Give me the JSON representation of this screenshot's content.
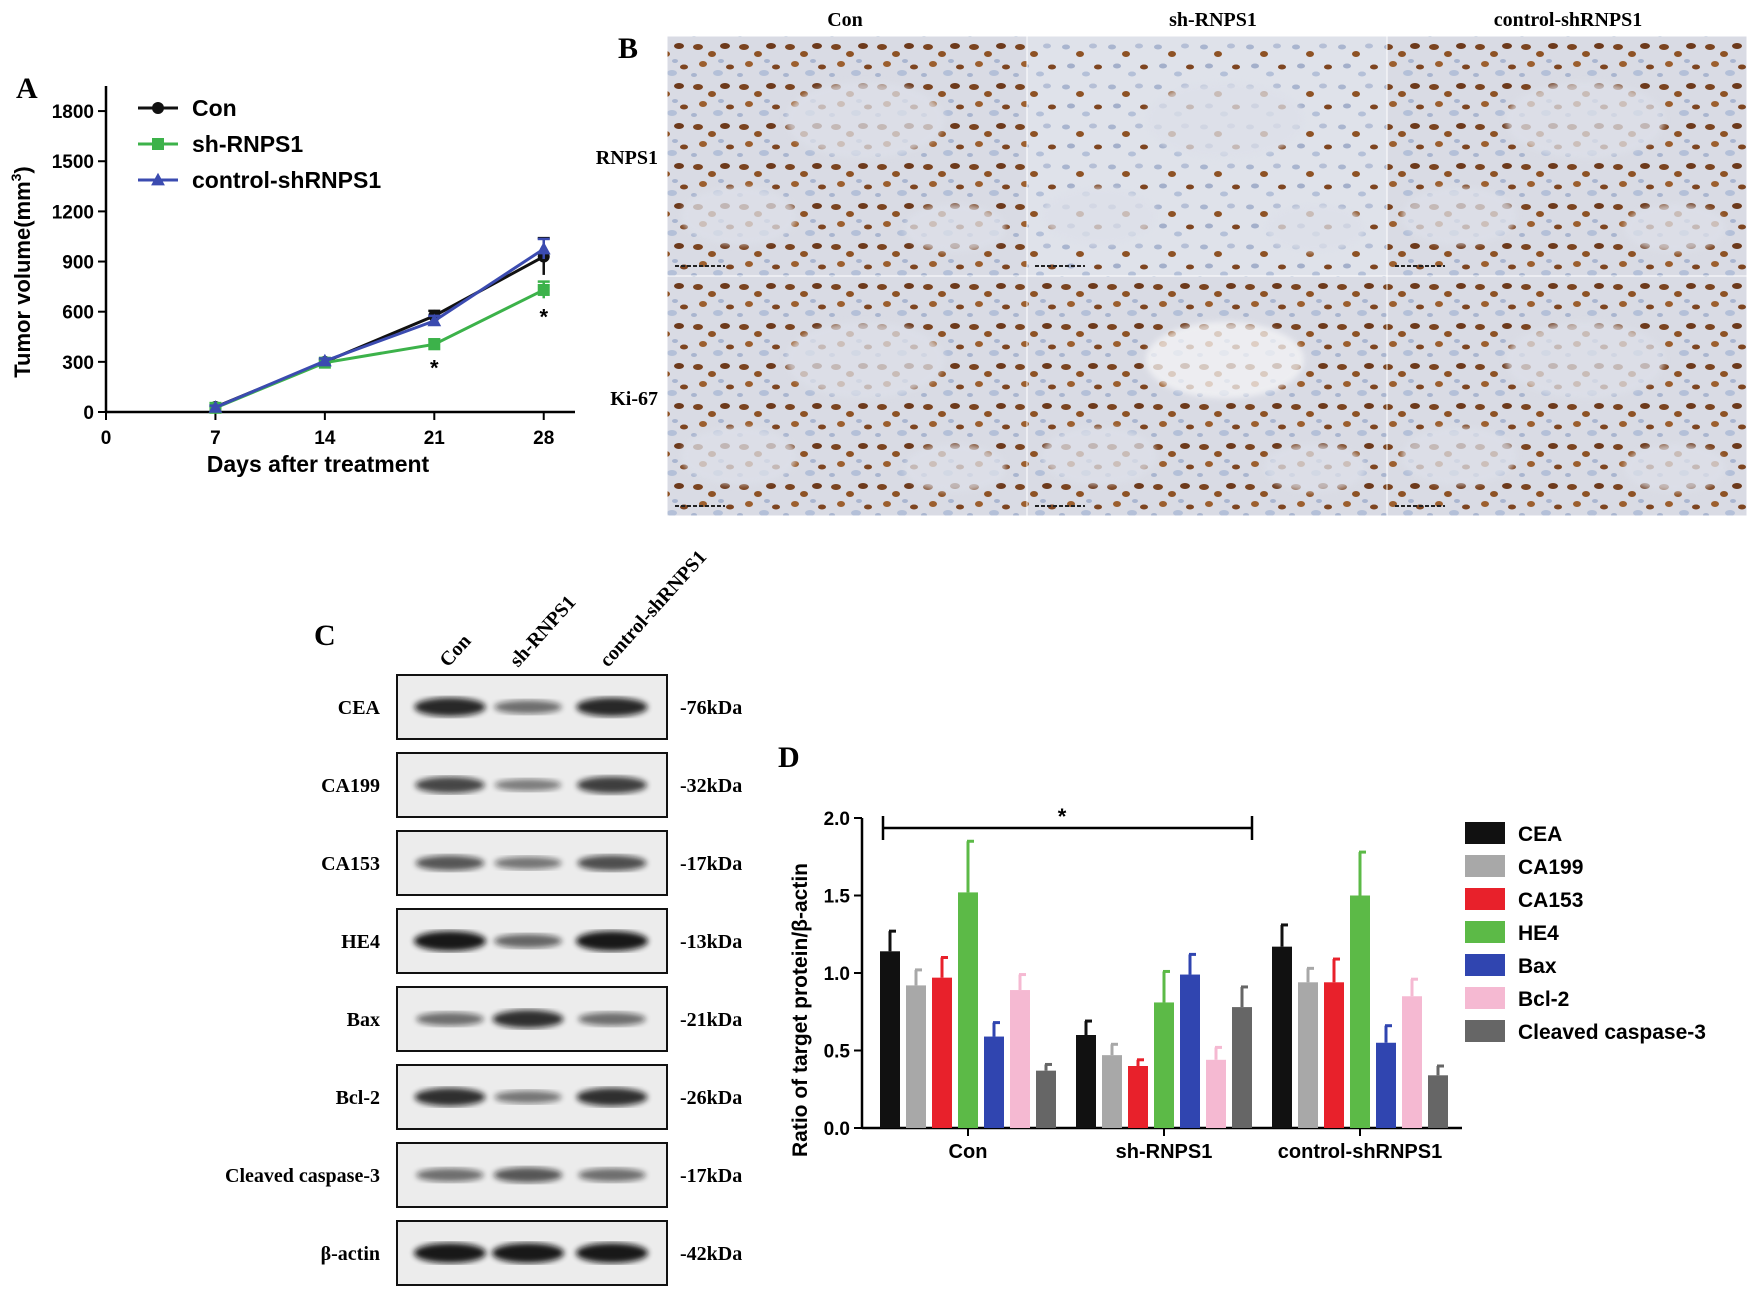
{
  "panels": {
    "A": {
      "letter": "A",
      "chart_data": {
        "type": "line",
        "xlabel": "Days after treatment",
        "ylabel": "Tumor volume(mm",
        "ylabel_sup": "3",
        "ylabel_close": ")",
        "xlim": [
          0,
          30
        ],
        "ylim": [
          0,
          1950
        ],
        "xticks": [
          0,
          7,
          14,
          21,
          28
        ],
        "yticks": [
          0,
          300,
          600,
          900,
          1200,
          1500,
          1800
        ],
        "x": [
          7,
          14,
          21,
          28
        ],
        "series": [
          {
            "name": "Con",
            "color": "#111111",
            "marker": "circle",
            "values": [
              30,
              300,
              575,
              930
            ],
            "err": [
              10,
              15,
              30,
              110
            ]
          },
          {
            "name": "sh-RNPS1",
            "color": "#3cb24a",
            "marker": "square",
            "values": [
              25,
              295,
              405,
              730
            ],
            "err": [
              8,
              15,
              30,
              50
            ]
          },
          {
            "name": "control-shRNPS1",
            "color": "#3b4bb0",
            "marker": "triangle",
            "values": [
              28,
              305,
              545,
              975
            ],
            "err": [
              10,
              15,
              30,
              60
            ]
          }
        ],
        "annotations": [
          {
            "text": "*",
            "x": 21
          },
          {
            "text": "*",
            "x": 28
          }
        ],
        "legend": "top-left"
      }
    },
    "B": {
      "letter": "B",
      "columns": [
        "Con",
        "sh-RNPS1",
        "control-shRNPS1"
      ],
      "rows": [
        "RNPS1",
        "Ki-67"
      ]
    },
    "C": {
      "letter": "C",
      "lanes": [
        "Con",
        "sh-RNPS1",
        "control-shRNPS1"
      ],
      "blots": [
        {
          "label": "CEA",
          "size": "-76kDa",
          "intensity": [
            0.9,
            0.45,
            0.9
          ]
        },
        {
          "label": "CA199",
          "size": "-32kDa",
          "intensity": [
            0.7,
            0.35,
            0.75
          ]
        },
        {
          "label": "CA153",
          "size": "-17kDa",
          "intensity": [
            0.6,
            0.4,
            0.65
          ]
        },
        {
          "label": "HE4",
          "size": "-13kDa",
          "intensity": [
            1.0,
            0.5,
            1.0
          ]
        },
        {
          "label": "Bax",
          "size": "-21kDa",
          "intensity": [
            0.45,
            0.85,
            0.45
          ]
        },
        {
          "label": "Bcl-2",
          "size": "-26kDa",
          "intensity": [
            0.85,
            0.4,
            0.85
          ]
        },
        {
          "label": "Cleaved caspase-3",
          "size": "-17kDa",
          "intensity": [
            0.45,
            0.6,
            0.45
          ]
        },
        {
          "label": "β-actin",
          "size": "-42kDa",
          "intensity": [
            1.0,
            1.0,
            1.0
          ]
        }
      ]
    },
    "D": {
      "letter": "D",
      "chart_data": {
        "type": "bar",
        "ylabel": "Ratio of target protein/β-actin",
        "ylim": [
          0,
          2.0
        ],
        "yticks": [
          "0.0",
          "0.5",
          "1.0",
          "1.5",
          "2.0"
        ],
        "categories": [
          "Con",
          "sh-RNPS1",
          "control-shRNPS1"
        ],
        "series": [
          {
            "name": "CEA",
            "color": "#111111",
            "values": [
              1.14,
              0.6,
              1.17
            ],
            "err": [
              0.13,
              0.09,
              0.14
            ]
          },
          {
            "name": "CA199",
            "color": "#a8a8a8",
            "values": [
              0.92,
              0.47,
              0.94
            ],
            "err": [
              0.1,
              0.07,
              0.09
            ]
          },
          {
            "name": "CA153",
            "color": "#e8212b",
            "values": [
              0.97,
              0.4,
              0.94
            ],
            "err": [
              0.13,
              0.04,
              0.15
            ]
          },
          {
            "name": "HE4",
            "color": "#5cba47",
            "values": [
              1.52,
              0.81,
              1.5
            ],
            "err": [
              0.33,
              0.2,
              0.28
            ]
          },
          {
            "name": "Bax",
            "color": "#3045b0",
            "values": [
              0.59,
              0.99,
              0.55
            ],
            "err": [
              0.09,
              0.13,
              0.11
            ]
          },
          {
            "name": "Bcl-2",
            "color": "#f5b9d2",
            "values": [
              0.89,
              0.44,
              0.85
            ],
            "err": [
              0.1,
              0.08,
              0.11
            ]
          },
          {
            "name": "Cleaved caspase-3",
            "color": "#666666",
            "values": [
              0.37,
              0.78,
              0.34
            ],
            "err": [
              0.04,
              0.13,
              0.06
            ]
          }
        ],
        "annotations": [
          {
            "text": "*"
          }
        ],
        "legend": "right"
      }
    }
  }
}
